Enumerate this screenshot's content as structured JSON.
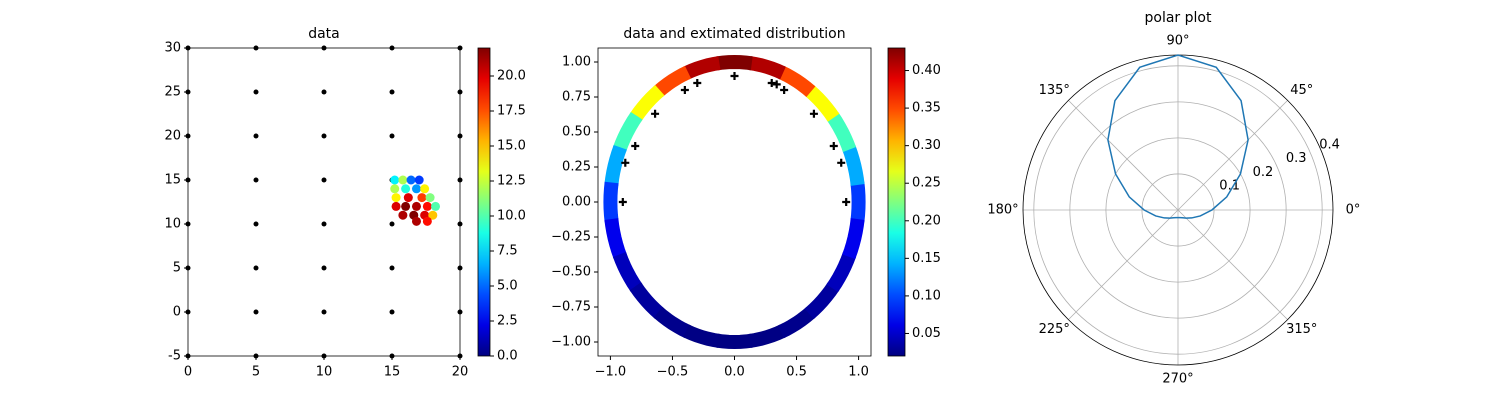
{
  "chart_data": [
    {
      "type": "scatter",
      "title": "data",
      "xlim": [
        0,
        20
      ],
      "ylim": [
        -5,
        30
      ],
      "xticks": [
        0,
        5,
        10,
        15,
        20
      ],
      "yticks": [
        -5,
        0,
        5,
        10,
        15,
        20,
        25,
        30
      ],
      "series": [
        {
          "color": "#000000",
          "x": [
            0,
            0,
            0,
            0,
            0,
            0,
            0,
            0,
            5,
            5,
            5,
            5,
            5,
            5,
            5,
            5,
            10,
            10,
            10,
            10,
            10,
            10,
            10,
            10,
            15,
            15,
            15,
            15,
            15,
            15,
            15,
            15,
            20,
            20,
            20,
            20,
            20,
            20,
            20,
            20
          ],
          "y": [
            -5,
            0,
            5,
            10,
            15,
            20,
            25,
            30,
            -5,
            0,
            5,
            10,
            15,
            20,
            25,
            30,
            -5,
            0,
            5,
            10,
            15,
            20,
            25,
            30,
            -5,
            0,
            5,
            10,
            15,
            20,
            25,
            30,
            -5,
            0,
            5,
            10,
            15,
            20,
            25,
            30
          ]
        },
        {
          "colormap": "jet",
          "x": [
            15.2,
            15.8,
            16.4,
            17.0,
            15.2,
            16.0,
            16.8,
            17.4,
            15.3,
            16.2,
            17.2,
            17.8,
            15.3,
            16.0,
            16.8,
            17.6,
            18.2,
            15.8,
            16.6,
            17.4,
            18.0,
            16.8,
            17.6
          ],
          "y": [
            15,
            15,
            15,
            15,
            14,
            14,
            14,
            14,
            13,
            13,
            13,
            13,
            12,
            12,
            12,
            12,
            12,
            11,
            11,
            11,
            11,
            10.3,
            10.3
          ],
          "values": [
            8,
            12,
            5,
            4,
            12,
            9,
            6,
            14,
            14,
            20,
            18,
            11,
            20,
            22,
            21,
            19,
            10,
            21,
            22,
            20,
            15,
            21,
            19
          ]
        }
      ],
      "colorbar": {
        "lim": [
          0,
          22
        ],
        "ticks": [
          {
            "value": 0,
            "label": "0.0"
          },
          2.5,
          {
            "value": 5,
            "label": "5.0"
          },
          7.5,
          {
            "value": 10,
            "label": "10.0"
          },
          12.5,
          {
            "value": 15,
            "label": "15.0"
          },
          17.5,
          {
            "value": 20,
            "label": "20.0"
          }
        ]
      }
    },
    {
      "type": "ring",
      "title": "data and extimated distribution",
      "xlim": [
        -1.1,
        1.1
      ],
      "ylim": [
        -1.1,
        1.1
      ],
      "xticks": [
        {
          "value": -1,
          "label": "−1.0"
        },
        {
          "value": -0.5,
          "label": "−0.5"
        },
        {
          "value": 0,
          "label": "0.0"
        },
        0.5,
        {
          "value": 1,
          "label": "1.0"
        }
      ],
      "yticks": [
        {
          "value": -1,
          "label": "−1.00"
        },
        {
          "value": -0.75,
          "label": "−0.75"
        },
        {
          "value": -0.5,
          "label": "−0.50"
        },
        {
          "value": -0.25,
          "label": "−0.25"
        },
        {
          "value": 0,
          "label": "0.00"
        },
        0.25,
        {
          "value": 0.5,
          "label": "0.50"
        },
        0.75,
        {
          "value": 1,
          "label": "1.00"
        }
      ],
      "ring": {
        "colormap": "jet",
        "theta": [
          0,
          15,
          30,
          45,
          60,
          75,
          90,
          105,
          120,
          135,
          150,
          165,
          180,
          195,
          210,
          225,
          240,
          255,
          270,
          285,
          300,
          315,
          330,
          345
        ],
        "values": [
          0.094,
          0.14,
          0.2,
          0.275,
          0.35,
          0.41,
          0.43,
          0.41,
          0.35,
          0.275,
          0.2,
          0.14,
          0.094,
          0.064,
          0.044,
          0.032,
          0.025,
          0.022,
          0.021,
          0.022,
          0.025,
          0.032,
          0.044,
          0.064
        ]
      },
      "markers": {
        "color": "#000000",
        "x": [
          -0.9,
          -0.88,
          -0.8,
          -0.64,
          -0.4,
          -0.3,
          0,
          0.3,
          0.34,
          0.4,
          0.64,
          0.8,
          0.86,
          0.9
        ],
        "y": [
          0,
          0.28,
          0.4,
          0.63,
          0.8,
          0.85,
          0.9,
          0.85,
          0.84,
          0.8,
          0.63,
          0.4,
          0.28,
          0
        ]
      },
      "colorbar": {
        "lim": [
          0.02,
          0.43
        ],
        "ticks": [
          0.05,
          {
            "value": 0.1,
            "label": "0.10"
          },
          0.15,
          {
            "value": 0.2,
            "label": "0.20"
          },
          0.25,
          {
            "value": 0.3,
            "label": "0.30"
          },
          0.35,
          {
            "value": 0.4,
            "label": "0.40"
          }
        ]
      }
    },
    {
      "type": "polar",
      "title": "polar plot",
      "color": "#1f77b4",
      "rlim": [
        0,
        0.43
      ],
      "rticks": [
        0.1,
        0.2,
        0.3,
        0.4
      ],
      "thetaticks": [
        {
          "value": 0,
          "label": "0°"
        },
        {
          "value": 45,
          "label": "45°"
        },
        {
          "value": 90,
          "label": "90°"
        },
        {
          "value": 135,
          "label": "135°"
        },
        {
          "value": 180,
          "label": "180°"
        },
        {
          "value": 225,
          "label": "225°"
        },
        {
          "value": 270,
          "label": "270°"
        },
        {
          "value": 315,
          "label": "315°"
        }
      ],
      "theta": [
        0,
        15,
        30,
        45,
        60,
        75,
        90,
        105,
        120,
        135,
        150,
        165,
        180,
        195,
        210,
        225,
        240,
        255,
        270,
        285,
        300,
        315,
        330,
        345
      ],
      "values": [
        0.094,
        0.14,
        0.2,
        0.275,
        0.35,
        0.41,
        0.43,
        0.41,
        0.35,
        0.275,
        0.2,
        0.14,
        0.094,
        0.064,
        0.044,
        0.032,
        0.025,
        0.022,
        0.021,
        0.022,
        0.025,
        0.032,
        0.044,
        0.064
      ]
    }
  ]
}
